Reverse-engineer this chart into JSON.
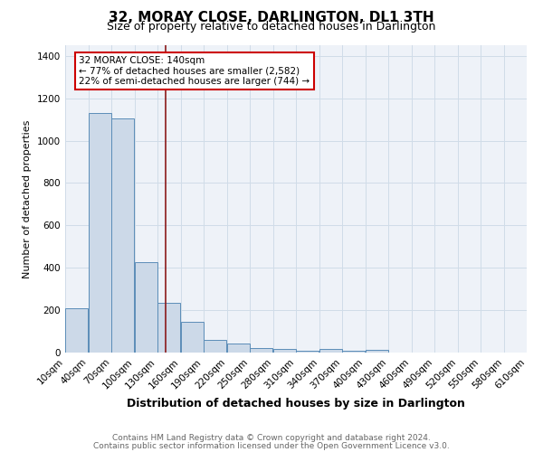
{
  "title": "32, MORAY CLOSE, DARLINGTON, DL1 3TH",
  "subtitle": "Size of property relative to detached houses in Darlington",
  "xlabel": "Distribution of detached houses by size in Darlington",
  "ylabel": "Number of detached properties",
  "footer_line1": "Contains HM Land Registry data © Crown copyright and database right 2024.",
  "footer_line2": "Contains public sector information licensed under the Open Government Licence v3.0.",
  "bins": [
    10,
    40,
    70,
    100,
    130,
    160,
    190,
    220,
    250,
    280,
    310,
    340,
    370,
    400,
    430,
    460,
    490,
    520,
    550,
    580,
    610
  ],
  "counts": [
    207,
    1130,
    1105,
    425,
    233,
    147,
    58,
    44,
    20,
    15,
    10,
    15,
    8,
    13,
    0,
    0,
    0,
    0,
    0,
    0
  ],
  "bar_facecolor": "#ccd9e8",
  "bar_edgecolor": "#5b8db8",
  "grid_color": "#d0dce8",
  "bg_color": "#eef2f8",
  "vline_x": 140,
  "vline_color": "#8b1a1a",
  "annotation_text": "32 MORAY CLOSE: 140sqm\n← 77% of detached houses are smaller (2,582)\n22% of semi-detached houses are larger (744) →",
  "ylim": [
    0,
    1450
  ],
  "yticks": [
    0,
    200,
    400,
    600,
    800,
    1000,
    1200,
    1400
  ],
  "tick_labels": [
    "10sqm",
    "40sqm",
    "70sqm",
    "100sqm",
    "130sqm",
    "160sqm",
    "190sqm",
    "220sqm",
    "250sqm",
    "280sqm",
    "310sqm",
    "340sqm",
    "370sqm",
    "400sqm",
    "430sqm",
    "460sqm",
    "490sqm",
    "520sqm",
    "550sqm",
    "580sqm",
    "610sqm"
  ],
  "title_fontsize": 11,
  "subtitle_fontsize": 9,
  "ylabel_fontsize": 8,
  "xlabel_fontsize": 9,
  "tick_fontsize": 7,
  "annotation_fontsize": 7.5,
  "footer_fontsize": 6.5,
  "footer_color": "#666666"
}
